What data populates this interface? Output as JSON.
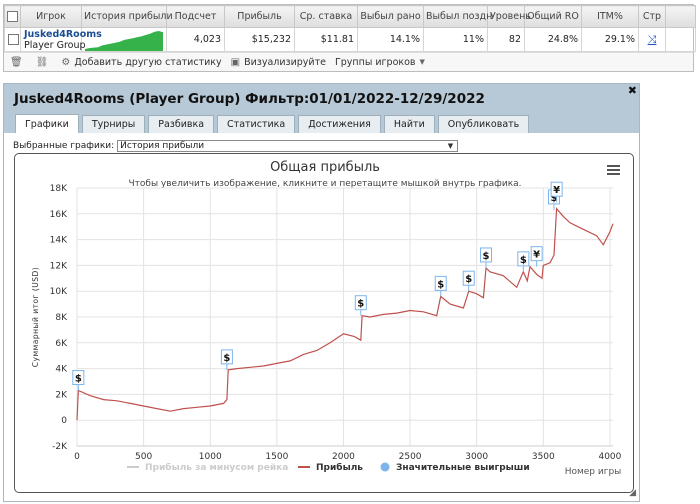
{
  "stats": {
    "columns": [
      "Игрок",
      "История прибыли",
      "Подсчет",
      "Прибыль",
      "Ср. ставка",
      "Выбыл рано",
      "Выбыл поздн",
      "Уровень",
      "Общий RO",
      "ITM%",
      "Стр"
    ],
    "row": {
      "player": "Jusked4Rooms",
      "group": "Player Group",
      "count": "4,023",
      "profit": "$15,232",
      "avg_stake": "$11.81",
      "early": "14.1%",
      "late": "11%",
      "level": "82",
      "roi": "24.8%",
      "itm": "29.1%",
      "page_icon": "export-icon"
    },
    "sparkline": [
      0,
      0.05,
      0.08,
      0.1,
      0.2,
      0.25,
      0.3,
      0.35,
      0.4,
      0.5,
      0.55,
      0.6,
      0.65,
      0.7,
      0.78,
      0.85,
      0.95,
      1.0,
      0.93
    ]
  },
  "toolbar": {
    "add_stat": "Добавить другую статистику",
    "visualize": "Визуализируйте",
    "groups": "Группы игроков"
  },
  "panel": {
    "title": "Jusked4Rooms (Player Group) Фильтр:01/01/2022-12/29/2022",
    "tabs": [
      "Графики",
      "Турниры",
      "Разбивка",
      "Статистика",
      "Достижения",
      "Найти",
      "Опубликовать"
    ],
    "active_tab": 0,
    "selector_label": "Выбранные графики:",
    "selector_value": "История прибыли"
  },
  "chart_data": {
    "type": "line",
    "title": "Общая прибыль",
    "subtitle": "Чтобы увеличить изображение, кликните и перетащите мышкой внутрь графика.",
    "xlabel": "Номер игры",
    "ylabel": "Суммарный итог (USD)",
    "xlim": [
      0,
      4023
    ],
    "ylim": [
      -2000,
      18000
    ],
    "x_ticks": [
      0,
      500,
      1000,
      1500,
      2000,
      2500,
      3000,
      3500,
      4000
    ],
    "y_ticks": [
      -2000,
      0,
      2000,
      4000,
      6000,
      8000,
      10000,
      12000,
      14000,
      16000,
      18000
    ],
    "y_tick_labels": [
      "-2K",
      "0",
      "2K",
      "4K",
      "6K",
      "8K",
      "10K",
      "12K",
      "14K",
      "16K",
      "18K"
    ],
    "grid": true,
    "series": [
      {
        "name": "Прибыль за минусом рейка",
        "color": "#cccccc",
        "visible": false,
        "values": []
      },
      {
        "name": "Прибыль",
        "color": "#c0504d",
        "x": [
          0,
          10,
          100,
          200,
          300,
          400,
          500,
          600,
          700,
          800,
          900,
          1000,
          1100,
          1125,
          1135,
          1200,
          1300,
          1400,
          1500,
          1600,
          1700,
          1800,
          1900,
          2000,
          2080,
          2130,
          2140,
          2200,
          2300,
          2400,
          2500,
          2600,
          2700,
          2730,
          2800,
          2900,
          2940,
          3000,
          3050,
          3070,
          3100,
          3200,
          3300,
          3350,
          3380,
          3400,
          3450,
          3490,
          3500,
          3550,
          3580,
          3600,
          3650,
          3700,
          3800,
          3900,
          3950,
          4000,
          4023
        ],
        "y": [
          0,
          2300,
          1900,
          1600,
          1500,
          1300,
          1100,
          900,
          700,
          900,
          1000,
          1100,
          1300,
          1600,
          3900,
          4000,
          4100,
          4200,
          4400,
          4600,
          5100,
          5400,
          6000,
          6700,
          6500,
          6200,
          8100,
          8000,
          8200,
          8300,
          8500,
          8400,
          8100,
          9600,
          9000,
          8700,
          10000,
          9800,
          9500,
          11800,
          11500,
          11200,
          10300,
          11500,
          10800,
          11900,
          11300,
          11000,
          12000,
          12200,
          12800,
          16400,
          15800,
          15300,
          14800,
          14300,
          13600,
          14600,
          15232
        ]
      },
      {
        "name": "Значительные выигрыши",
        "color": "#7cb5ec",
        "marker": "circle"
      }
    ],
    "annotations": [
      {
        "x": 10,
        "y": 2300,
        "label": "$"
      },
      {
        "x": 1125,
        "y": 3900,
        "label": "$"
      },
      {
        "x": 2130,
        "y": 8100,
        "label": "$"
      },
      {
        "x": 2730,
        "y": 9600,
        "label": "$"
      },
      {
        "x": 2940,
        "y": 10000,
        "label": "$"
      },
      {
        "x": 3070,
        "y": 11800,
        "label": "$"
      },
      {
        "x": 3350,
        "y": 11500,
        "label": "$"
      },
      {
        "x": 3450,
        "y": 11900,
        "label": "¥"
      },
      {
        "x": 3580,
        "y": 16300,
        "label": "$"
      },
      {
        "x": 3600,
        "y": 16900,
        "label": "¥"
      }
    ],
    "legend": "bottom-center",
    "menu_icon": "hamburger-menu-icon"
  }
}
